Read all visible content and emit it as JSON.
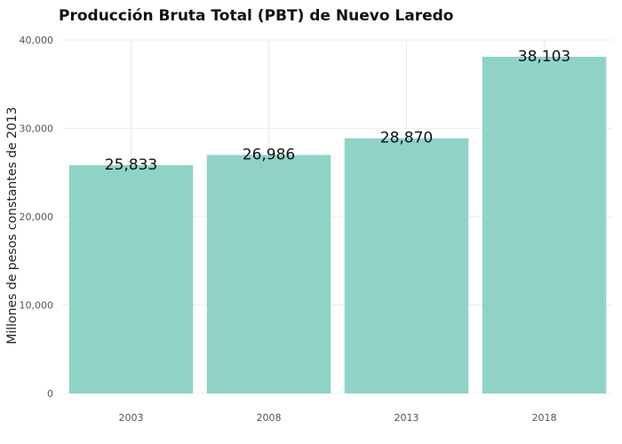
{
  "chart_data": {
    "type": "bar",
    "title": "Producción Bruta Total (PBT) de Nuevo Laredo",
    "xlabel": "",
    "ylabel": "Millones de pesos constantes de 2013",
    "categories": [
      "2003",
      "2008",
      "2013",
      "2018"
    ],
    "values": [
      25833,
      26986,
      28870,
      38103
    ],
    "data_labels": [
      "25,833",
      "26,986",
      "28,870",
      "38,103"
    ],
    "ylim": [
      0,
      40000
    ],
    "yticks": [
      0,
      10000,
      20000,
      30000,
      40000
    ],
    "ytick_labels": [
      "0",
      "10,000",
      "20,000",
      "30,000",
      "40,000"
    ],
    "grid": true,
    "bar_color": "#8fd3c7"
  }
}
